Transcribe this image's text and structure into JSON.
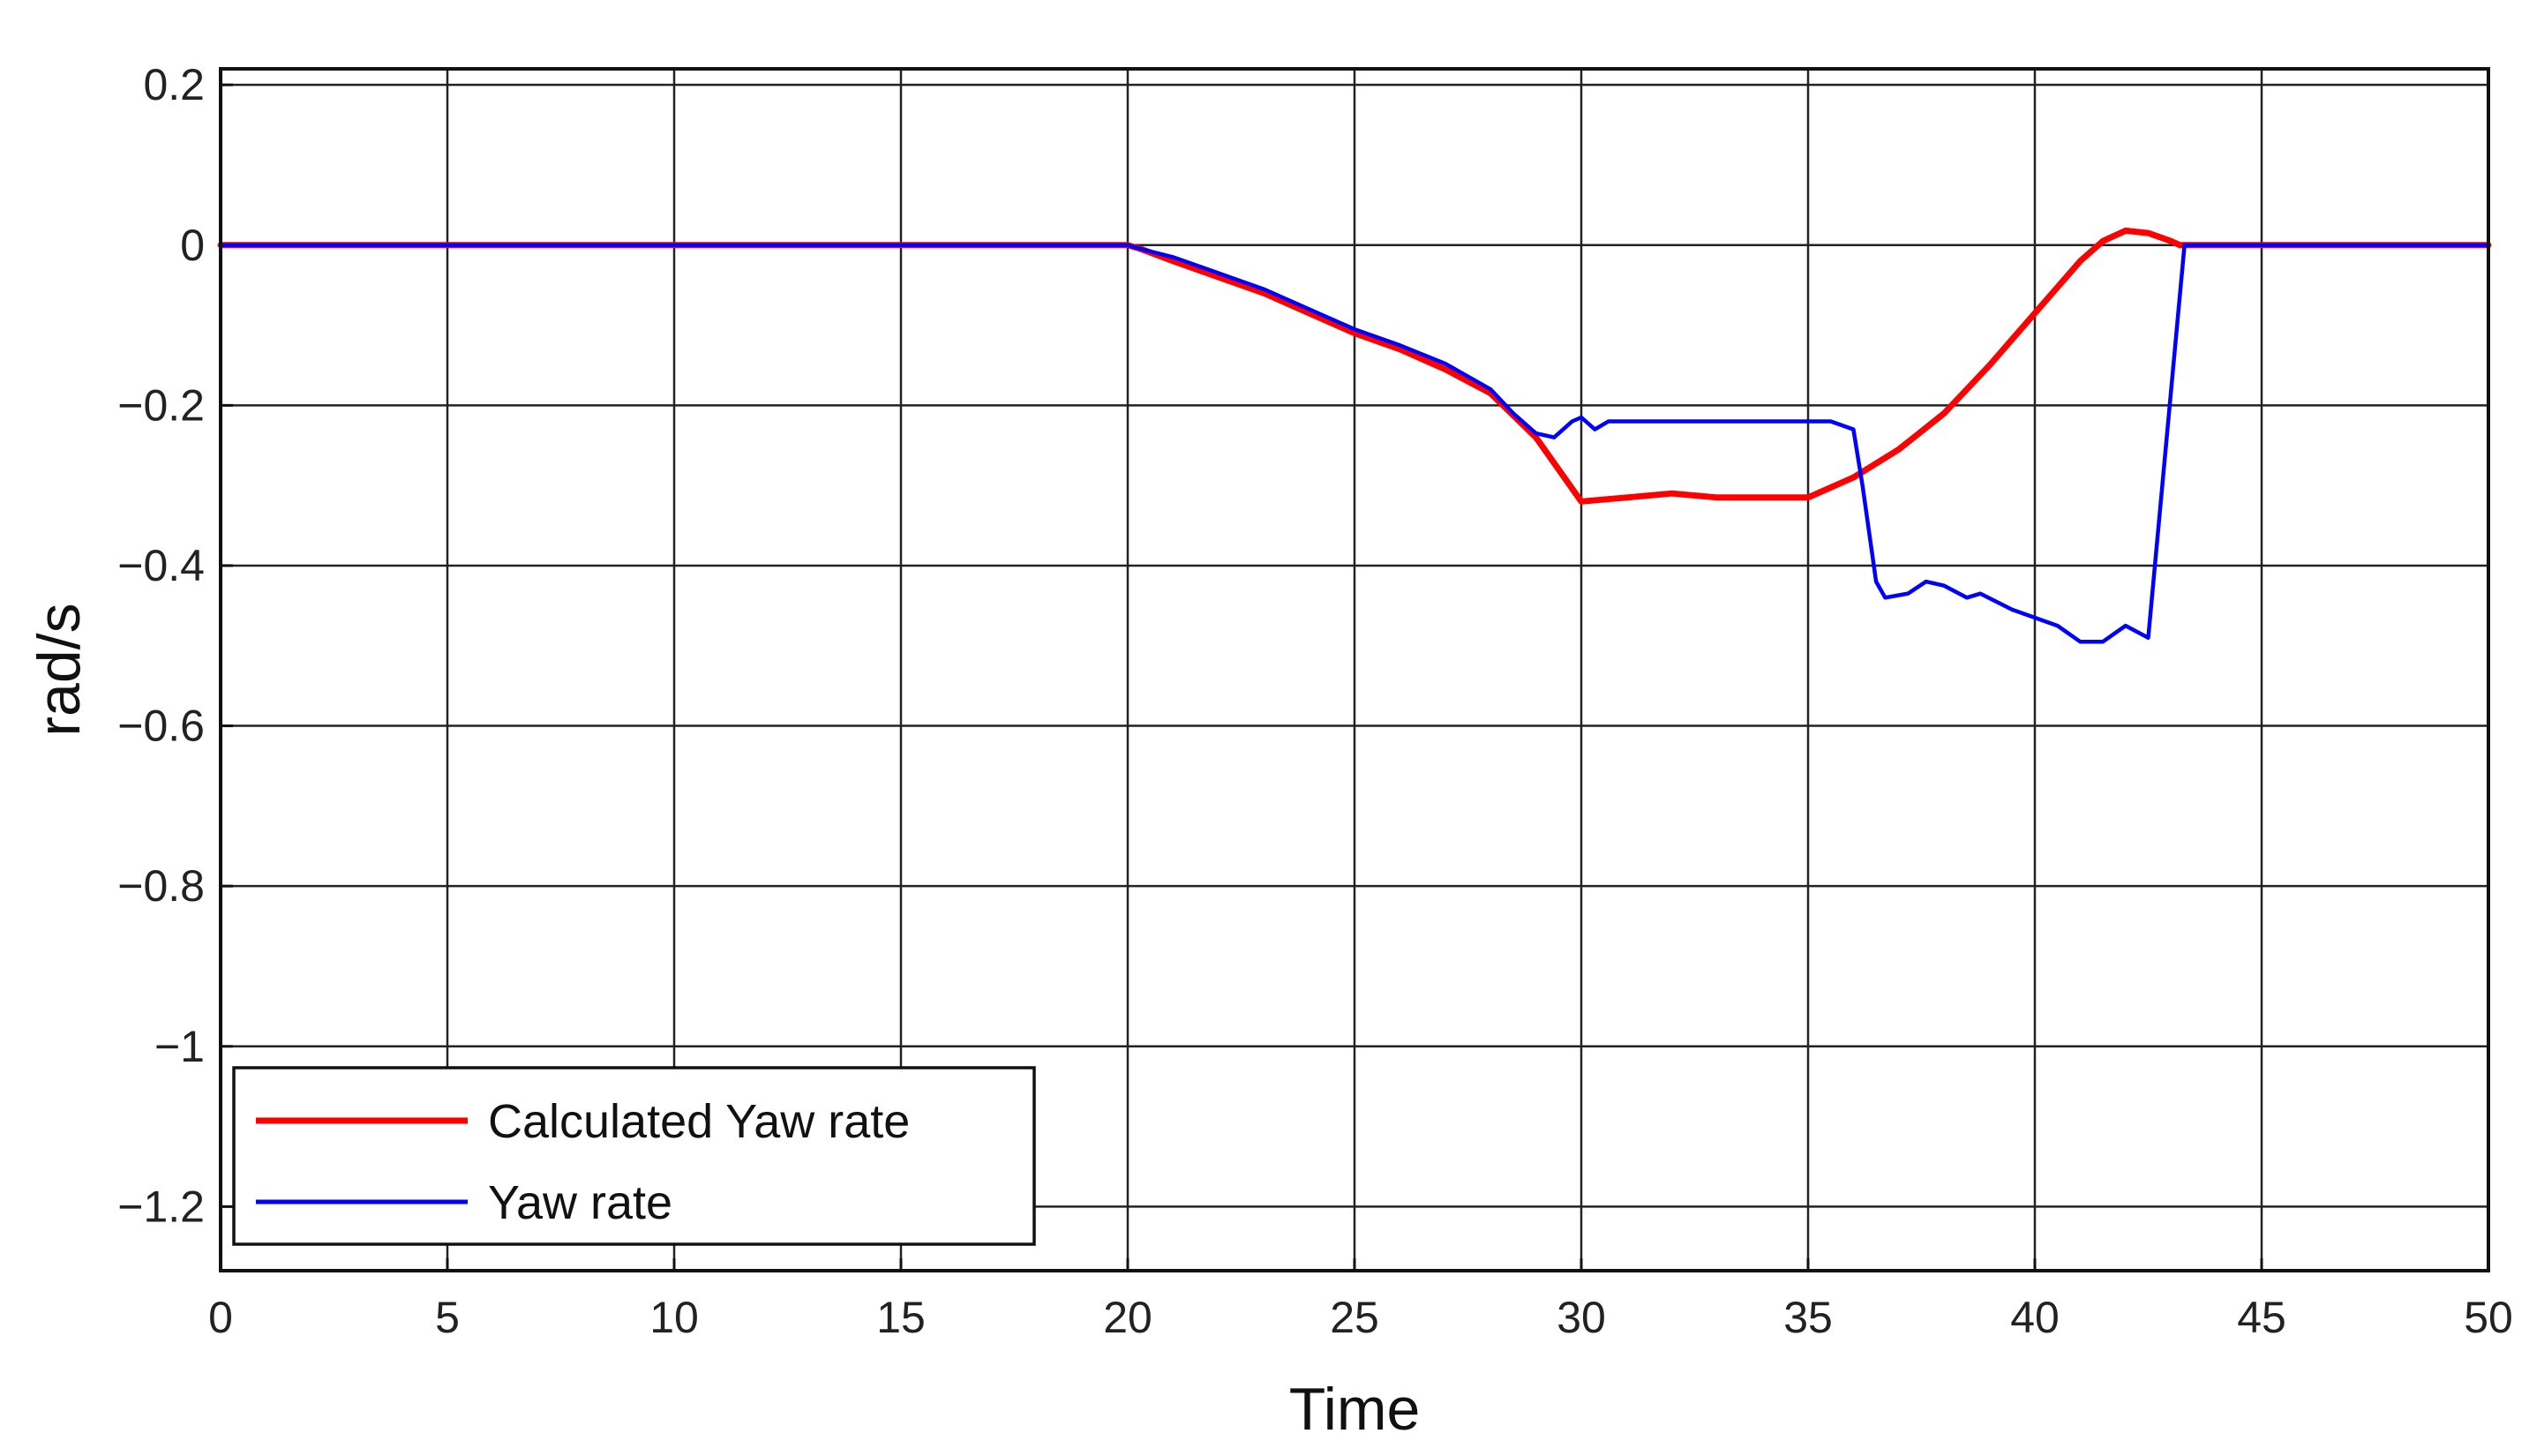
{
  "chart_data": {
    "type": "line",
    "title": "",
    "xlabel": "Time",
    "ylabel": "rad/s",
    "xlim": [
      0,
      50
    ],
    "ylim": [
      -1.28,
      0.22
    ],
    "grid": true,
    "legend_position": "bottom-left",
    "x_ticks": [
      0,
      5,
      10,
      15,
      20,
      25,
      30,
      35,
      40,
      45,
      50
    ],
    "x_tick_labels": [
      "0",
      "5",
      "10",
      "15",
      "20",
      "25",
      "30",
      "35",
      "40",
      "45",
      "50"
    ],
    "y_ticks": [
      0.2,
      0,
      -0.2,
      -0.4,
      -0.6,
      -0.8,
      -1,
      -1.2
    ],
    "y_tick_labels": [
      "0.2",
      "0",
      "−0.2",
      "−0.4",
      "−0.6",
      "−0.8",
      "−1",
      "−1.2"
    ],
    "series": [
      {
        "name": "Calculated Yaw rate",
        "color": "#ff0000",
        "points": [
          [
            0,
            0
          ],
          [
            20,
            0
          ],
          [
            20.3,
            -0.005
          ],
          [
            21,
            -0.02
          ],
          [
            22,
            -0.04
          ],
          [
            23,
            -0.06
          ],
          [
            24,
            -0.085
          ],
          [
            25,
            -0.11
          ],
          [
            26,
            -0.13
          ],
          [
            27,
            -0.155
          ],
          [
            28,
            -0.185
          ],
          [
            29,
            -0.24
          ],
          [
            29.5,
            -0.28
          ],
          [
            30,
            -0.32
          ],
          [
            31,
            -0.315
          ],
          [
            32,
            -0.31
          ],
          [
            33,
            -0.315
          ],
          [
            34,
            -0.315
          ],
          [
            35,
            -0.315
          ],
          [
            36,
            -0.29
          ],
          [
            37,
            -0.255
          ],
          [
            38,
            -0.21
          ],
          [
            39,
            -0.15
          ],
          [
            40,
            -0.085
          ],
          [
            41,
            -0.02
          ],
          [
            41.5,
            0.005
          ],
          [
            42,
            0.018
          ],
          [
            42.5,
            0.015
          ],
          [
            43,
            0.005
          ],
          [
            43.2,
            0
          ],
          [
            50,
            0
          ]
        ]
      },
      {
        "name": "Yaw rate",
        "color": "#0000ff",
        "points": [
          [
            0,
            0
          ],
          [
            20,
            0
          ],
          [
            20.3,
            -0.005
          ],
          [
            21,
            -0.015
          ],
          [
            22,
            -0.035
          ],
          [
            23,
            -0.055
          ],
          [
            24,
            -0.08
          ],
          [
            25,
            -0.105
          ],
          [
            26,
            -0.125
          ],
          [
            27,
            -0.148
          ],
          [
            28,
            -0.18
          ],
          [
            28.5,
            -0.21
          ],
          [
            29,
            -0.235
          ],
          [
            29.4,
            -0.24
          ],
          [
            29.8,
            -0.22
          ],
          [
            30,
            -0.215
          ],
          [
            30.3,
            -0.23
          ],
          [
            30.6,
            -0.22
          ],
          [
            32,
            -0.22
          ],
          [
            34,
            -0.22
          ],
          [
            35.5,
            -0.22
          ],
          [
            36,
            -0.23
          ],
          [
            36.2,
            -0.3
          ],
          [
            36.5,
            -0.42
          ],
          [
            36.7,
            -0.44
          ],
          [
            37.2,
            -0.435
          ],
          [
            37.6,
            -0.42
          ],
          [
            38,
            -0.425
          ],
          [
            38.5,
            -0.44
          ],
          [
            38.8,
            -0.435
          ],
          [
            39.5,
            -0.455
          ],
          [
            40,
            -0.465
          ],
          [
            40.5,
            -0.475
          ],
          [
            41,
            -0.495
          ],
          [
            41.5,
            -0.495
          ],
          [
            42,
            -0.475
          ],
          [
            42.5,
            -0.49
          ],
          [
            43.3,
            0
          ],
          [
            50,
            0
          ]
        ]
      }
    ]
  }
}
